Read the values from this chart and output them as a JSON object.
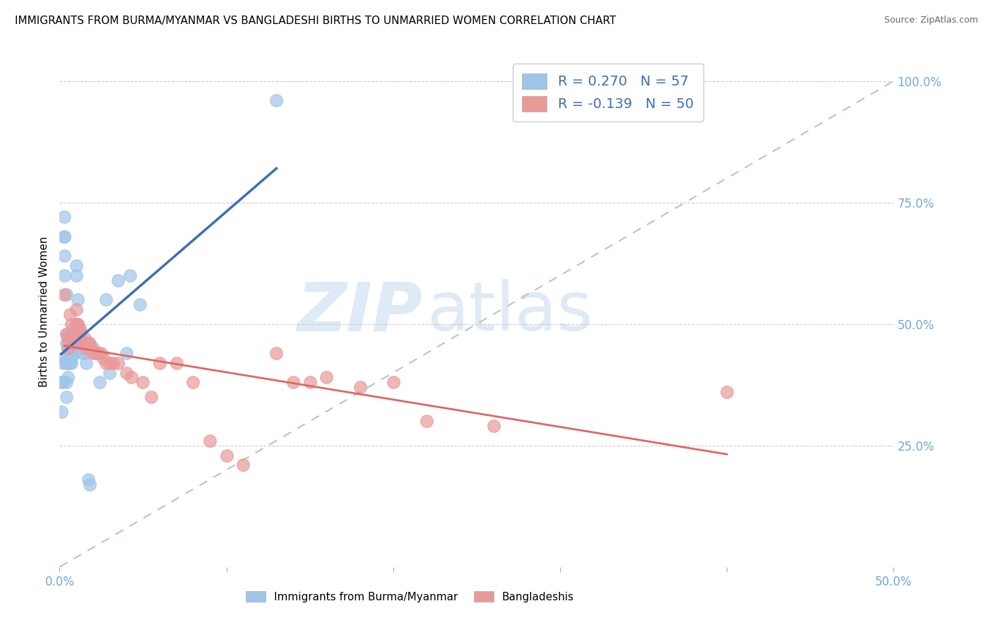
{
  "title": "IMMIGRANTS FROM BURMA/MYANMAR VS BANGLADESHI BIRTHS TO UNMARRIED WOMEN CORRELATION CHART",
  "source": "Source: ZipAtlas.com",
  "ylabel": "Births to Unmarried Women",
  "legend_label1": "R = 0.270   N = 57",
  "legend_label2": "R = -0.139   N = 50",
  "legend_series1": "Immigrants from Burma/Myanmar",
  "legend_series2": "Bangladeshis",
  "color_blue": "#9fc5e8",
  "color_pink": "#ea9999",
  "color_trendline_blue": "#3d6eb5",
  "color_trendline_pink": "#e06666",
  "color_dashed": "#b0c4de",
  "series1_x": [
    0.001,
    0.001,
    0.002,
    0.002,
    0.002,
    0.003,
    0.003,
    0.003,
    0.003,
    0.003,
    0.004,
    0.004,
    0.004,
    0.004,
    0.004,
    0.004,
    0.005,
    0.005,
    0.005,
    0.005,
    0.005,
    0.006,
    0.006,
    0.006,
    0.006,
    0.007,
    0.007,
    0.007,
    0.007,
    0.007,
    0.008,
    0.008,
    0.008,
    0.009,
    0.009,
    0.01,
    0.01,
    0.011,
    0.011,
    0.012,
    0.012,
    0.013,
    0.014,
    0.015,
    0.016,
    0.017,
    0.018,
    0.02,
    0.022,
    0.024,
    0.028,
    0.03,
    0.035,
    0.04,
    0.042,
    0.048,
    0.13
  ],
  "series1_y": [
    0.38,
    0.32,
    0.42,
    0.43,
    0.38,
    0.72,
    0.68,
    0.68,
    0.64,
    0.6,
    0.56,
    0.48,
    0.46,
    0.42,
    0.38,
    0.35,
    0.46,
    0.45,
    0.43,
    0.42,
    0.39,
    0.46,
    0.45,
    0.43,
    0.42,
    0.48,
    0.46,
    0.44,
    0.43,
    0.42,
    0.49,
    0.47,
    0.44,
    0.47,
    0.44,
    0.62,
    0.6,
    0.55,
    0.5,
    0.49,
    0.47,
    0.45,
    0.44,
    0.44,
    0.42,
    0.18,
    0.17,
    0.45,
    0.44,
    0.38,
    0.55,
    0.4,
    0.59,
    0.44,
    0.6,
    0.54,
    0.96
  ],
  "series2_x": [
    0.003,
    0.004,
    0.005,
    0.005,
    0.006,
    0.007,
    0.007,
    0.008,
    0.009,
    0.01,
    0.01,
    0.011,
    0.012,
    0.012,
    0.013,
    0.014,
    0.015,
    0.016,
    0.016,
    0.017,
    0.018,
    0.019,
    0.02,
    0.022,
    0.023,
    0.025,
    0.026,
    0.028,
    0.03,
    0.032,
    0.035,
    0.04,
    0.043,
    0.05,
    0.055,
    0.06,
    0.07,
    0.08,
    0.09,
    0.1,
    0.11,
    0.13,
    0.14,
    0.15,
    0.16,
    0.18,
    0.2,
    0.22,
    0.26,
    0.4
  ],
  "series2_y": [
    0.56,
    0.48,
    0.47,
    0.45,
    0.52,
    0.5,
    0.47,
    0.47,
    0.46,
    0.53,
    0.5,
    0.5,
    0.49,
    0.48,
    0.46,
    0.46,
    0.47,
    0.46,
    0.45,
    0.46,
    0.46,
    0.45,
    0.44,
    0.44,
    0.44,
    0.44,
    0.43,
    0.42,
    0.42,
    0.42,
    0.42,
    0.4,
    0.39,
    0.38,
    0.35,
    0.42,
    0.42,
    0.38,
    0.26,
    0.23,
    0.21,
    0.44,
    0.38,
    0.38,
    0.39,
    0.37,
    0.38,
    0.3,
    0.29,
    0.36
  ],
  "xlim": [
    0.0,
    0.5
  ],
  "ylim": [
    0.0,
    1.05
  ],
  "xticks": [
    0.0,
    0.1,
    0.2,
    0.3,
    0.4,
    0.5
  ],
  "yticks": [
    0.0,
    0.25,
    0.5,
    0.75,
    1.0
  ]
}
